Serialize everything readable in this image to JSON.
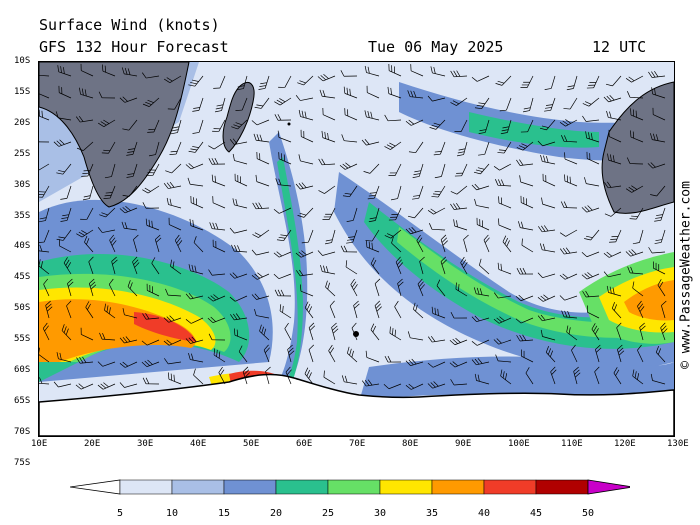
{
  "header": {
    "title": "Surface Wind (knots)",
    "forecast": "GFS 132 Hour Forecast",
    "date": "Tue 06 May 2025",
    "time": "12 UTC"
  },
  "credit": "© www.PassageWeather.com",
  "latitude_labels": [
    "10S",
    "15S",
    "20S",
    "25S",
    "30S",
    "35S",
    "40S",
    "45S",
    "50S",
    "55S",
    "60S",
    "65S",
    "70S",
    "75S"
  ],
  "longitude_labels": [
    "10E",
    "20E",
    "30E",
    "40E",
    "50E",
    "60E",
    "70E",
    "80E",
    "90E",
    "100E",
    "110E",
    "120E",
    "130E"
  ],
  "colorbar": {
    "labels": [
      "5",
      "10",
      "15",
      "20",
      "25",
      "30",
      "35",
      "40",
      "45",
      "50"
    ],
    "colors": [
      "#ffffff",
      "#dde6f6",
      "#a9bfe6",
      "#6f91d3",
      "#2ac08e",
      "#66e066",
      "#ffe600",
      "#ff9a00",
      "#f03c28",
      "#b00000",
      "#c800c8"
    ]
  },
  "colors": {
    "land": "#6e7385",
    "water_calm": "#dde6f6"
  }
}
